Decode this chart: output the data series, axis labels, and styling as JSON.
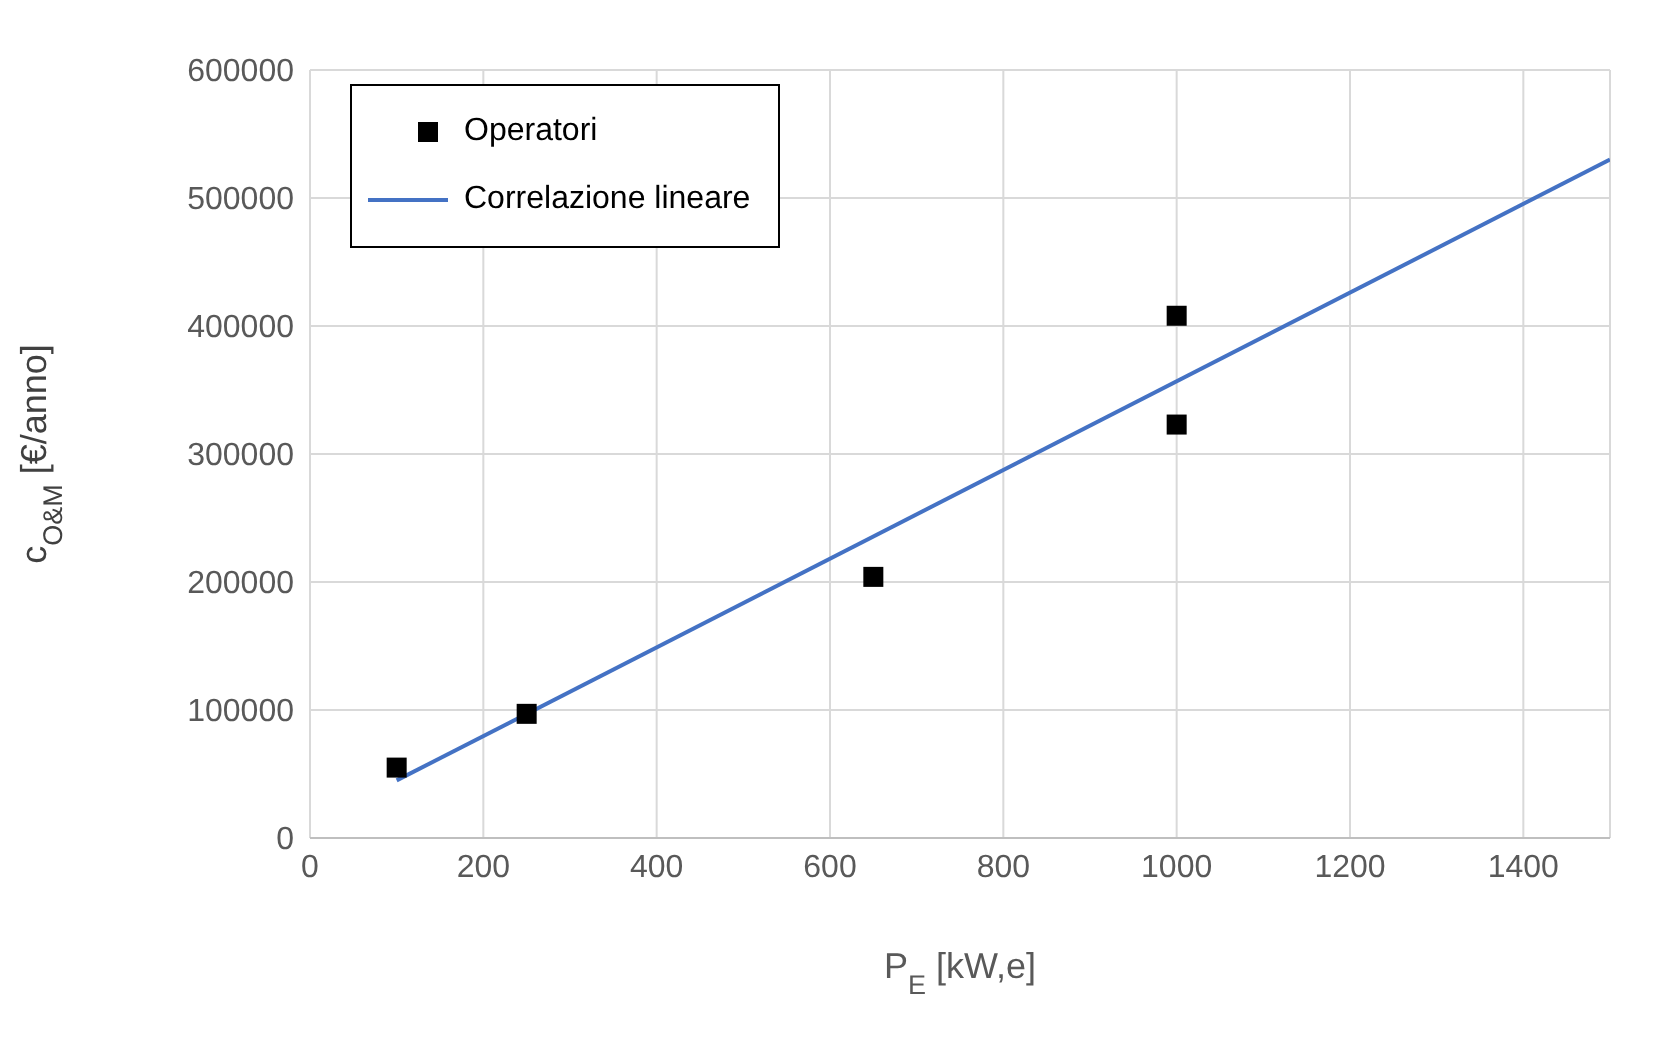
{
  "chart_data": {
    "type": "scatter",
    "xlabel": "P$_{E}$ [kW,e]",
    "ylabel": "c$_{O&M}$ [€/anno]",
    "xlim": [
      0,
      1500
    ],
    "xticks": [
      0,
      200,
      400,
      600,
      800,
      1000,
      1200,
      1400
    ],
    "ylim": [
      0,
      600000
    ],
    "yticks": [
      0,
      100000,
      200000,
      300000,
      400000,
      500000,
      600000
    ],
    "grid": true,
    "legend": "top left",
    "series": [
      {
        "name": "Operatori",
        "marker": "square",
        "color": "#000000",
        "x": [
          100,
          250,
          650,
          1000,
          1000
        ],
        "values": [
          55000,
          97000,
          204000,
          408000,
          323000
        ]
      },
      {
        "name": "Correlazione lineare",
        "type": "line",
        "marker": "none",
        "color": "#4472c4",
        "x": [
          100,
          1500
        ],
        "values": [
          45000,
          530000
        ]
      }
    ]
  }
}
